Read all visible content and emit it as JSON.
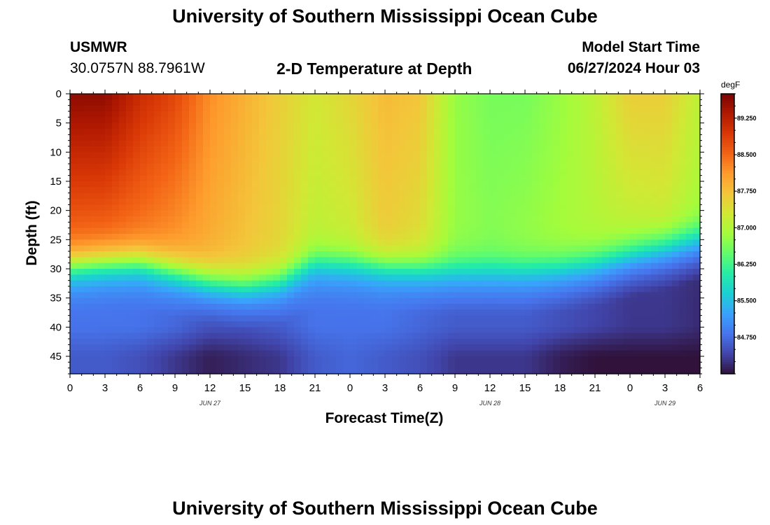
{
  "page": {
    "title": "University of Southern Mississippi Ocean Cube",
    "footer_title": "University of Southern Mississippi Ocean Cube",
    "station": "USMWR",
    "coordinates": "30.0757N  88.7961W",
    "plot_title": "2-D Temperature at Depth",
    "model_start_label": "Model Start Time",
    "model_start_value": "06/27/2024 Hour 03"
  },
  "chart_data": {
    "type": "heatmap",
    "title": "2-D Temperature at Depth",
    "xlabel": "Forecast Time(Z)",
    "ylabel": "Depth (ft)",
    "x_ticks": [
      "0",
      "3",
      "6",
      "9",
      "12",
      "15",
      "18",
      "21",
      "0",
      "3",
      "6",
      "9",
      "12",
      "15",
      "18",
      "21",
      "0",
      "3",
      "6"
    ],
    "x_range_hours": [
      0,
      54
    ],
    "date_labels": [
      {
        "label": "JUN 27",
        "hour": 12
      },
      {
        "label": "JUN 28",
        "hour": 36
      },
      {
        "label": "JUN 29",
        "hour": 51
      }
    ],
    "y_ticks": [
      0,
      5,
      10,
      15,
      20,
      25,
      30,
      35,
      40,
      45
    ],
    "ylim": [
      0,
      48
    ],
    "y_inverted": true,
    "colorbar": {
      "unit": "degF",
      "min": 84.0,
      "max": 89.75,
      "ticks": [
        "89.250",
        "88.500",
        "87.750",
        "87.000",
        "86.250",
        "85.500",
        "84.750"
      ],
      "tick_values": [
        89.25,
        88.5,
        87.75,
        87.0,
        86.25,
        85.5,
        84.75
      ]
    },
    "palette": [
      "#30123b",
      "#4145ab",
      "#4675ed",
      "#39a2fc",
      "#1bcfd4",
      "#24eca6",
      "#61fc6c",
      "#a4fc3b",
      "#d1e834",
      "#f3c63a",
      "#fe9b2d",
      "#f36315",
      "#d93806",
      "#b11901",
      "#7a0402"
    ],
    "profiles": [
      {
        "hour": 0,
        "mixed_top": 89.6,
        "mixed_bottom": 88.4,
        "thermocline_ft": 29.5,
        "deep": 84.8,
        "bottom": 84.6
      },
      {
        "hour": 3,
        "mixed_top": 89.6,
        "mixed_bottom": 88.4,
        "thermocline_ft": 29.0,
        "deep": 84.8,
        "bottom": 84.6
      },
      {
        "hour": 6,
        "mixed_top": 89.1,
        "mixed_bottom": 88.3,
        "thermocline_ft": 28.8,
        "deep": 84.8,
        "bottom": 84.5
      },
      {
        "hour": 9,
        "mixed_top": 88.8,
        "mixed_bottom": 88.1,
        "thermocline_ft": 30.3,
        "deep": 84.7,
        "bottom": 84.3
      },
      {
        "hour": 12,
        "mixed_top": 88.2,
        "mixed_bottom": 87.9,
        "thermocline_ft": 31.8,
        "deep": 84.5,
        "bottom": 84.1
      },
      {
        "hour": 15,
        "mixed_top": 87.9,
        "mixed_bottom": 87.7,
        "thermocline_ft": 32.5,
        "deep": 84.5,
        "bottom": 84.2
      },
      {
        "hour": 18,
        "mixed_top": 87.6,
        "mixed_bottom": 87.5,
        "thermocline_ft": 31.8,
        "deep": 84.6,
        "bottom": 84.3
      },
      {
        "hour": 21,
        "mixed_top": 87.3,
        "mixed_bottom": 87.1,
        "thermocline_ft": 28.8,
        "deep": 84.8,
        "bottom": 84.6
      },
      {
        "hour": 24,
        "mixed_top": 87.5,
        "mixed_bottom": 87.2,
        "thermocline_ft": 29.0,
        "deep": 84.8,
        "bottom": 84.7
      },
      {
        "hour": 27,
        "mixed_top": 87.8,
        "mixed_bottom": 87.6,
        "thermocline_ft": 29.5,
        "deep": 84.8,
        "bottom": 84.6
      },
      {
        "hour": 30,
        "mixed_top": 87.7,
        "mixed_bottom": 87.4,
        "thermocline_ft": 29.8,
        "deep": 84.7,
        "bottom": 84.5
      },
      {
        "hour": 33,
        "mixed_top": 86.8,
        "mixed_bottom": 86.8,
        "thermocline_ft": 30.0,
        "deep": 84.6,
        "bottom": 84.3
      },
      {
        "hour": 36,
        "mixed_top": 86.6,
        "mixed_bottom": 86.7,
        "thermocline_ft": 30.0,
        "deep": 84.6,
        "bottom": 84.3
      },
      {
        "hour": 39,
        "mixed_top": 86.6,
        "mixed_bottom": 86.8,
        "thermocline_ft": 30.0,
        "deep": 84.6,
        "bottom": 84.3
      },
      {
        "hour": 42,
        "mixed_top": 86.8,
        "mixed_bottom": 86.9,
        "thermocline_ft": 29.5,
        "deep": 84.5,
        "bottom": 84.1
      },
      {
        "hour": 45,
        "mixed_top": 87.1,
        "mixed_bottom": 87.0,
        "thermocline_ft": 28.5,
        "deep": 84.4,
        "bottom": 84.0
      },
      {
        "hour": 48,
        "mixed_top": 87.6,
        "mixed_bottom": 87.1,
        "thermocline_ft": 26.8,
        "deep": 84.3,
        "bottom": 84.0
      },
      {
        "hour": 51,
        "mixed_top": 87.6,
        "mixed_bottom": 87.2,
        "thermocline_ft": 25.5,
        "deep": 84.3,
        "bottom": 84.0
      },
      {
        "hour": 54,
        "mixed_top": 87.1,
        "mixed_bottom": 86.9,
        "thermocline_ft": 24.0,
        "deep": 84.2,
        "bottom": 84.0
      }
    ]
  }
}
